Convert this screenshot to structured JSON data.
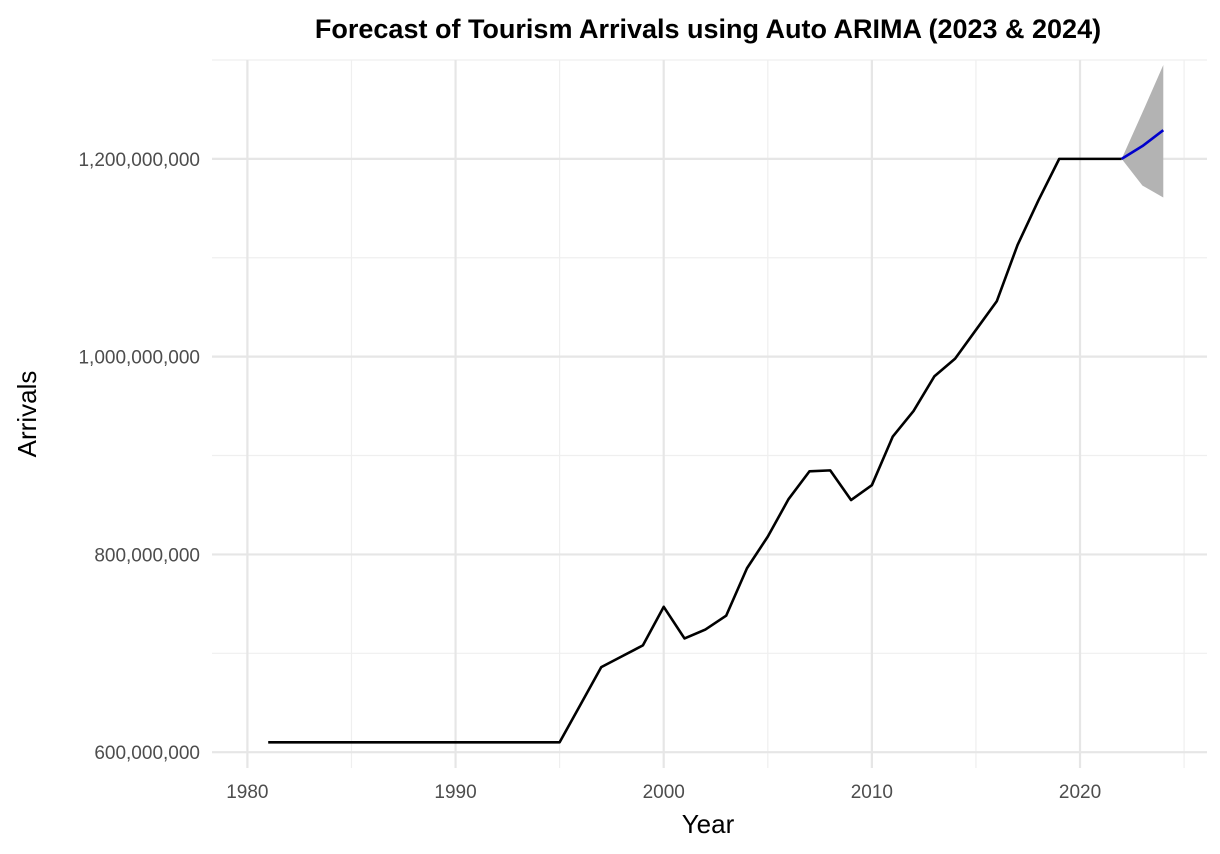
{
  "chart_data": {
    "type": "line",
    "title": "Forecast of Tourism Arrivals using Auto ARIMA (2023 & 2024)",
    "xlabel": "Year",
    "ylabel": "Arrivals",
    "xlim": [
      1980,
      2025
    ],
    "ylim": [
      590000000,
      1295000000
    ],
    "x_ticks": [
      1980,
      1990,
      2000,
      2010,
      2020
    ],
    "x_tick_labels": [
      "1980",
      "1990",
      "2000",
      "2010",
      "2020"
    ],
    "y_ticks": [
      600000000,
      800000000,
      1000000000,
      1200000000
    ],
    "y_tick_labels": [
      "600,000,000",
      "800,000,000",
      "1,000,000,000",
      "1,200,000,000"
    ],
    "grid": true,
    "legend": "none",
    "series": [
      {
        "role": "historical",
        "color": "#000000",
        "x": [
          1981,
          1982,
          1983,
          1984,
          1985,
          1986,
          1987,
          1988,
          1989,
          1990,
          1991,
          1992,
          1993,
          1994,
          1995,
          1996,
          1997,
          1998,
          1999,
          2000,
          2001,
          2002,
          2003,
          2004,
          2005,
          2006,
          2007,
          2008,
          2009,
          2010,
          2011,
          2012,
          2013,
          2014,
          2015,
          2016,
          2017,
          2018,
          2019,
          2020,
          2021,
          2022
        ],
        "values": [
          610000000,
          610000000,
          610000000,
          610000000,
          610000000,
          610000000,
          610000000,
          610000000,
          610000000,
          610000000,
          610000000,
          610000000,
          610000000,
          610000000,
          610000000,
          648000000,
          686000000,
          697000000,
          708000000,
          747000000,
          715000000,
          724000000,
          738000000,
          786000000,
          818000000,
          856000000,
          884000000,
          885000000,
          855000000,
          870000000,
          919000000,
          945000000,
          980000000,
          998000000,
          1027000000,
          1056000000,
          1113000000,
          1158000000,
          1200000000,
          1200000000,
          1200000000,
          1200000000
        ]
      },
      {
        "role": "forecast",
        "color": "#0000cc",
        "x": [
          2022,
          2023,
          2024
        ],
        "values": [
          1200000000,
          1213000000,
          1229000000
        ]
      }
    ],
    "interval": {
      "color": "#b3b3b3",
      "x": [
        2022,
        2023,
        2024
      ],
      "lower": [
        1200000000,
        1173000000,
        1161000000
      ],
      "upper": [
        1200000000,
        1247000000,
        1295000000
      ]
    }
  }
}
